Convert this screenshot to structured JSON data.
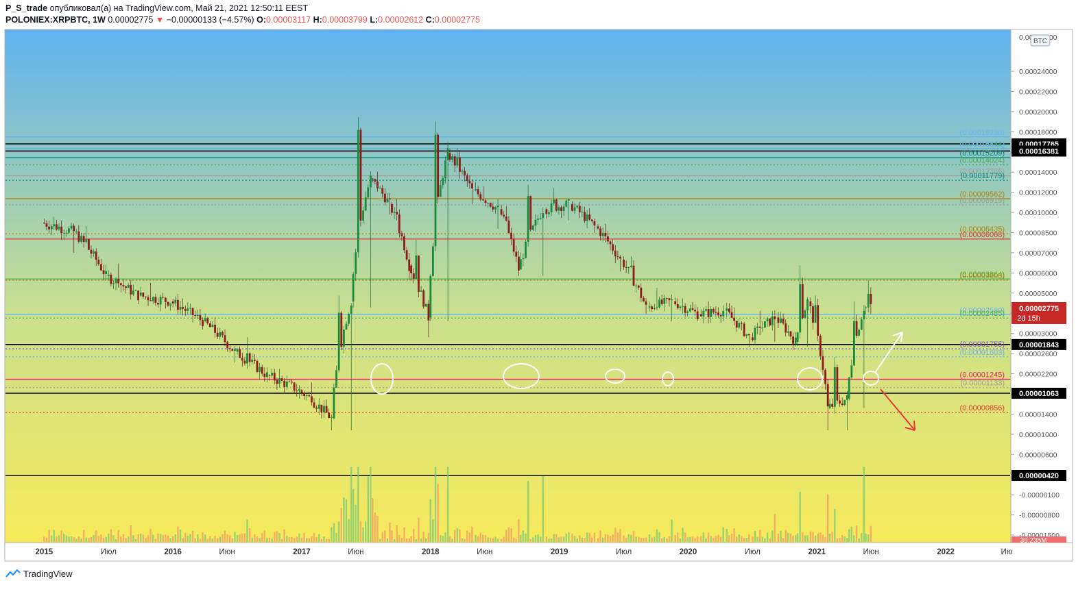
{
  "header": {
    "author": "P_S_trade",
    "published": "опубликовал(а) на TradingView.com, Май 21, 2021 12:50:11 EEST",
    "symbol": "POLONIEX:XRPBTC, 1W",
    "last": "0.00002775",
    "change": "−0.00000133 (−4.57%)",
    "open_label": "O:",
    "open": "0.00003117",
    "high_label": "H:",
    "high": "0.00003799",
    "low_label": "L:",
    "low": "0.00002612",
    "close_label": "C:",
    "close": "0.00002775"
  },
  "footer": {
    "brand": "TradingView"
  },
  "colors": {
    "bg_top": "#5fb2f0",
    "bg_bottom": "#f7ea5a",
    "up": "#1b8a3c",
    "down": "#8e1b1b",
    "price_tag": "#c62828"
  },
  "chart_data": {
    "type": "candlestick",
    "currency_badge": "BTC",
    "x_ticks": [
      "2015",
      "Июл",
      "2016",
      "Июн",
      "2017",
      "Июн",
      "2018",
      "Июн",
      "2019",
      "Июл",
      "2020",
      "Июл",
      "2021",
      "Июн",
      "2022",
      "Ию"
    ],
    "y_ticks": [
      "0.00024000",
      "0.00022000",
      "0.00020000",
      "0.00018000",
      "0.00016000",
      "0.00014000",
      "0.00012000",
      "0.00010000",
      "0.00008500",
      "0.00007000",
      "0.00006000",
      "0.00005000",
      "0.00004000",
      "0.00003000",
      "0.00002600",
      "0.00002200",
      "0.00001800",
      "0.00001400",
      "0.00001000",
      "0.00000600",
      "0.00000100",
      "-0.00000100",
      "-0.00000800",
      "-0.00001500"
    ],
    "top_tick_partial": "0.00026000",
    "levels": [
      {
        "value": "0.00019230",
        "color": "#64b5f6",
        "style": "solid",
        "boxed": false
      },
      {
        "value": "0.00017765",
        "color": "#000000",
        "style": "solid",
        "boxed": true
      },
      {
        "value": "0.00016844",
        "color": "#4caf50",
        "style": "solid",
        "boxed": false
      },
      {
        "value": "0.00016812",
        "color": "#64b5f6",
        "style": "solid",
        "boxed": false
      },
      {
        "value": "0.00016381",
        "color": "#000000",
        "style": "solid",
        "boxed": true
      },
      {
        "value": "0.00015209",
        "color": "#00897b",
        "style": "solid",
        "boxed": false
      },
      {
        "value": "0.00014024",
        "color": "#4caf50",
        "style": "dotted",
        "boxed": false
      },
      {
        "value": "0.00012386",
        "color": "#9e9e9e",
        "style": "solid",
        "boxed": false
      },
      {
        "value": "0.00011779",
        "color": "#00897b",
        "style": "dotted",
        "boxed": false
      },
      {
        "value": "0.00009562",
        "color": "#b8860b",
        "style": "solid",
        "boxed": false
      },
      {
        "value": "0.00008919",
        "color": "#9e9e9e",
        "style": "dotted",
        "boxed": false
      },
      {
        "value": "0.00006435",
        "color": "#b8860b",
        "style": "dotted",
        "boxed": false
      },
      {
        "value": "0.00006068",
        "color": "#e53935",
        "style": "solid",
        "boxed": false
      },
      {
        "value": "0.00003864",
        "color": "#4caf50",
        "style": "solid",
        "boxed": false
      },
      {
        "value": "0.00003808",
        "color": "#b8860b",
        "style": "dotted",
        "boxed": false
      },
      {
        "value": "0.00002580",
        "color": "#64b5f6",
        "style": "solid",
        "boxed": false
      },
      {
        "value": "0.00002485",
        "color": "#4caf50",
        "style": "dotted",
        "boxed": false
      },
      {
        "value": "0.00001843",
        "color": "#000000",
        "style": "solid",
        "boxed": true
      },
      {
        "value": "0.00001755",
        "color": "#7e57c2",
        "style": "dotted",
        "boxed": false
      },
      {
        "value": "0.00001603",
        "color": "#64b5f6",
        "style": "dotted",
        "boxed": false
      },
      {
        "value": "0.00001245",
        "color": "#e91e63",
        "style": "solid",
        "boxed": false
      },
      {
        "value": "0.00001133",
        "color": "#9e9e9e",
        "style": "dotted",
        "boxed": false
      },
      {
        "value": "0.00001063",
        "color": "#000000",
        "style": "solid",
        "boxed": true
      },
      {
        "value": "0.00000856",
        "color": "#e53935",
        "style": "dotted",
        "boxed": false
      },
      {
        "value": "0.00000420",
        "color": "#000000",
        "style": "solid",
        "boxed": true
      }
    ],
    "last_price": {
      "value": "0.00002775",
      "countdown": "2d 15h"
    },
    "volume_tag": "39.235M",
    "candles_weekly_approx": [
      [
        2015.0,
        7.3e-05,
        7.8e-05,
        5.2e-05,
        6.6e-05
      ],
      [
        2015.25,
        6.6e-05,
        7e-05,
        3.8e-05,
        4e-05
      ],
      [
        2015.5,
        4e-05,
        4.6e-05,
        3e-05,
        3.2e-05
      ],
      [
        2015.75,
        3.2e-05,
        3.7e-05,
        2.7e-05,
        3e-05
      ],
      [
        2016.0,
        3e-05,
        3.1e-05,
        2.2e-05,
        2.4e-05
      ],
      [
        2016.25,
        2.4e-05,
        2.5e-05,
        1.5e-05,
        1.7e-05
      ],
      [
        2016.5,
        1.7e-05,
        2e-05,
        1.2e-05,
        1.3e-05
      ],
      [
        2016.75,
        1.3e-05,
        1.4e-05,
        1e-05,
        1.1e-05
      ],
      [
        2017.0,
        1.1e-05,
        1.2e-05,
        7e-06,
        8e-06
      ],
      [
        2017.25,
        8e-06,
        3.2e-05,
        7e-06,
        3e-05
      ],
      [
        2017.4,
        3e-05,
        0.00024,
        2.8e-05,
        0.00012
      ],
      [
        2017.55,
        0.00012,
        0.00013,
        8e-05,
        9e-05
      ],
      [
        2017.7,
        9e-05,
        9.5e-05,
        3.8e-05,
        4.5e-05
      ],
      [
        2017.85,
        4.5e-05,
        6e-05,
        2e-05,
        2.5e-05
      ],
      [
        2018.0,
        2.5e-05,
        0.00023,
        2.4e-05,
        0.00016
      ],
      [
        2018.15,
        0.00016,
        0.00017,
        9e-05,
        0.000105
      ],
      [
        2018.35,
        0.000105,
        0.00011,
        6.8e-05,
        8.5e-05
      ],
      [
        2018.55,
        8.5e-05,
        8.8e-05,
        4e-05,
        4.3e-05
      ],
      [
        2018.7,
        4.3e-05,
        0.000112,
        4e-05,
        8.5e-05
      ],
      [
        2018.9,
        8.5e-05,
        0.000108,
        7.5e-05,
        9e-05
      ],
      [
        2019.1,
        9e-05,
        9.2e-05,
        6.5e-05,
        7e-05
      ],
      [
        2019.3,
        7e-05,
        7.2e-05,
        4.2e-05,
        4.8e-05
      ],
      [
        2019.5,
        4.8e-05,
        5e-05,
        2.6e-05,
        2.8e-05
      ],
      [
        2019.7,
        2.8e-05,
        3.5e-05,
        2.4e-05,
        3e-05
      ],
      [
        2019.9,
        3e-05,
        3.1e-05,
        2.4e-05,
        2.6e-05
      ],
      [
        2020.1,
        2.6e-05,
        3e-05,
        2.4e-05,
        2.7e-05
      ],
      [
        2020.3,
        2.7e-05,
        2.8e-05,
        1.8e-05,
        2e-05
      ],
      [
        2020.5,
        2e-05,
        2.7e-05,
        1.9e-05,
        2.5e-05
      ],
      [
        2020.7,
        2.5e-05,
        2.6e-05,
        1.8e-05,
        1.9e-05
      ],
      [
        2020.85,
        1.9e-05,
        4.5e-05,
        1.8e-05,
        3e-05
      ],
      [
        2020.95,
        3e-05,
        3.2e-05,
        7e-06,
        9e-06
      ],
      [
        2021.1,
        9e-06,
        1.6e-05,
        7e-06,
        1e-05
      ],
      [
        2021.25,
        1e-05,
        3e-05,
        9e-06,
        2.8e-05
      ],
      [
        2021.38,
        2.8e-05,
        3.8e-05,
        2.6e-05,
        2.8e-05
      ]
    ]
  }
}
